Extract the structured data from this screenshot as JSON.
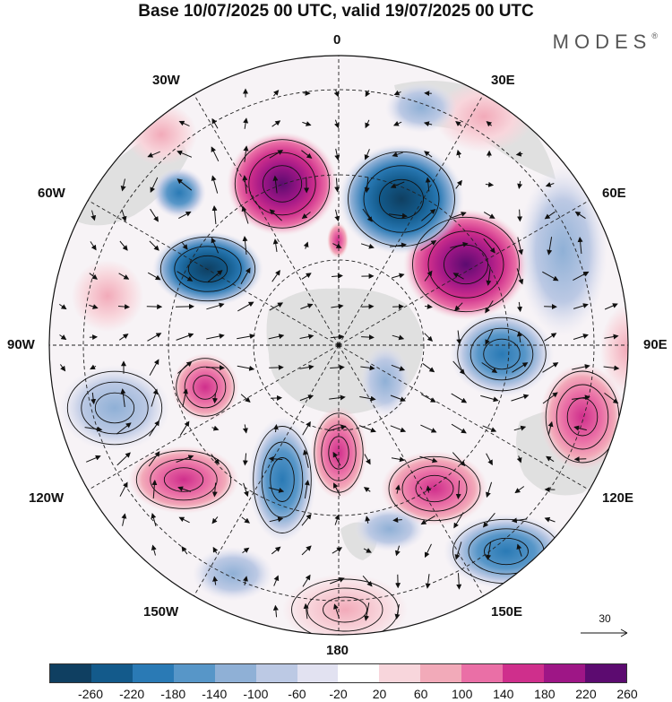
{
  "header": {
    "title": "Base 10/07/2025 00 UTC, valid 19/07/2025 00 UTC",
    "brand": "MODES",
    "brand_mark": "®"
  },
  "map": {
    "projection": "south-polar-stereographic",
    "lon_labels": {
      "l0": "0",
      "l30e": "30E",
      "l60e": "60E",
      "l90e": "90E",
      "l120e": "120E",
      "l150e": "150E",
      "l180": "180",
      "l150w": "150W",
      "l120w": "120W",
      "l90w": "90W",
      "l60w": "60W",
      "l30w": "30W"
    },
    "reference_vector": "30",
    "colors": {
      "land": "#dcdcdc",
      "neg_strong": "#114d7a",
      "pos_strong": "#5c0b70"
    }
  },
  "colorbar": {
    "ticks": [
      "-260",
      "-220",
      "-180",
      "-140",
      "-100",
      "-60",
      "-20",
      "20",
      "60",
      "100",
      "140",
      "180",
      "220",
      "260"
    ],
    "colors": [
      "#0f3f61",
      "#135a8b",
      "#2a7ab5",
      "#5796c8",
      "#8fb0d6",
      "#bcc9e4",
      "#e2e2f1",
      "#ffffff",
      "#f8d6dc",
      "#f2aab9",
      "#ea6fa6",
      "#cf2f8c",
      "#9e1686",
      "#5c0b70"
    ]
  }
}
